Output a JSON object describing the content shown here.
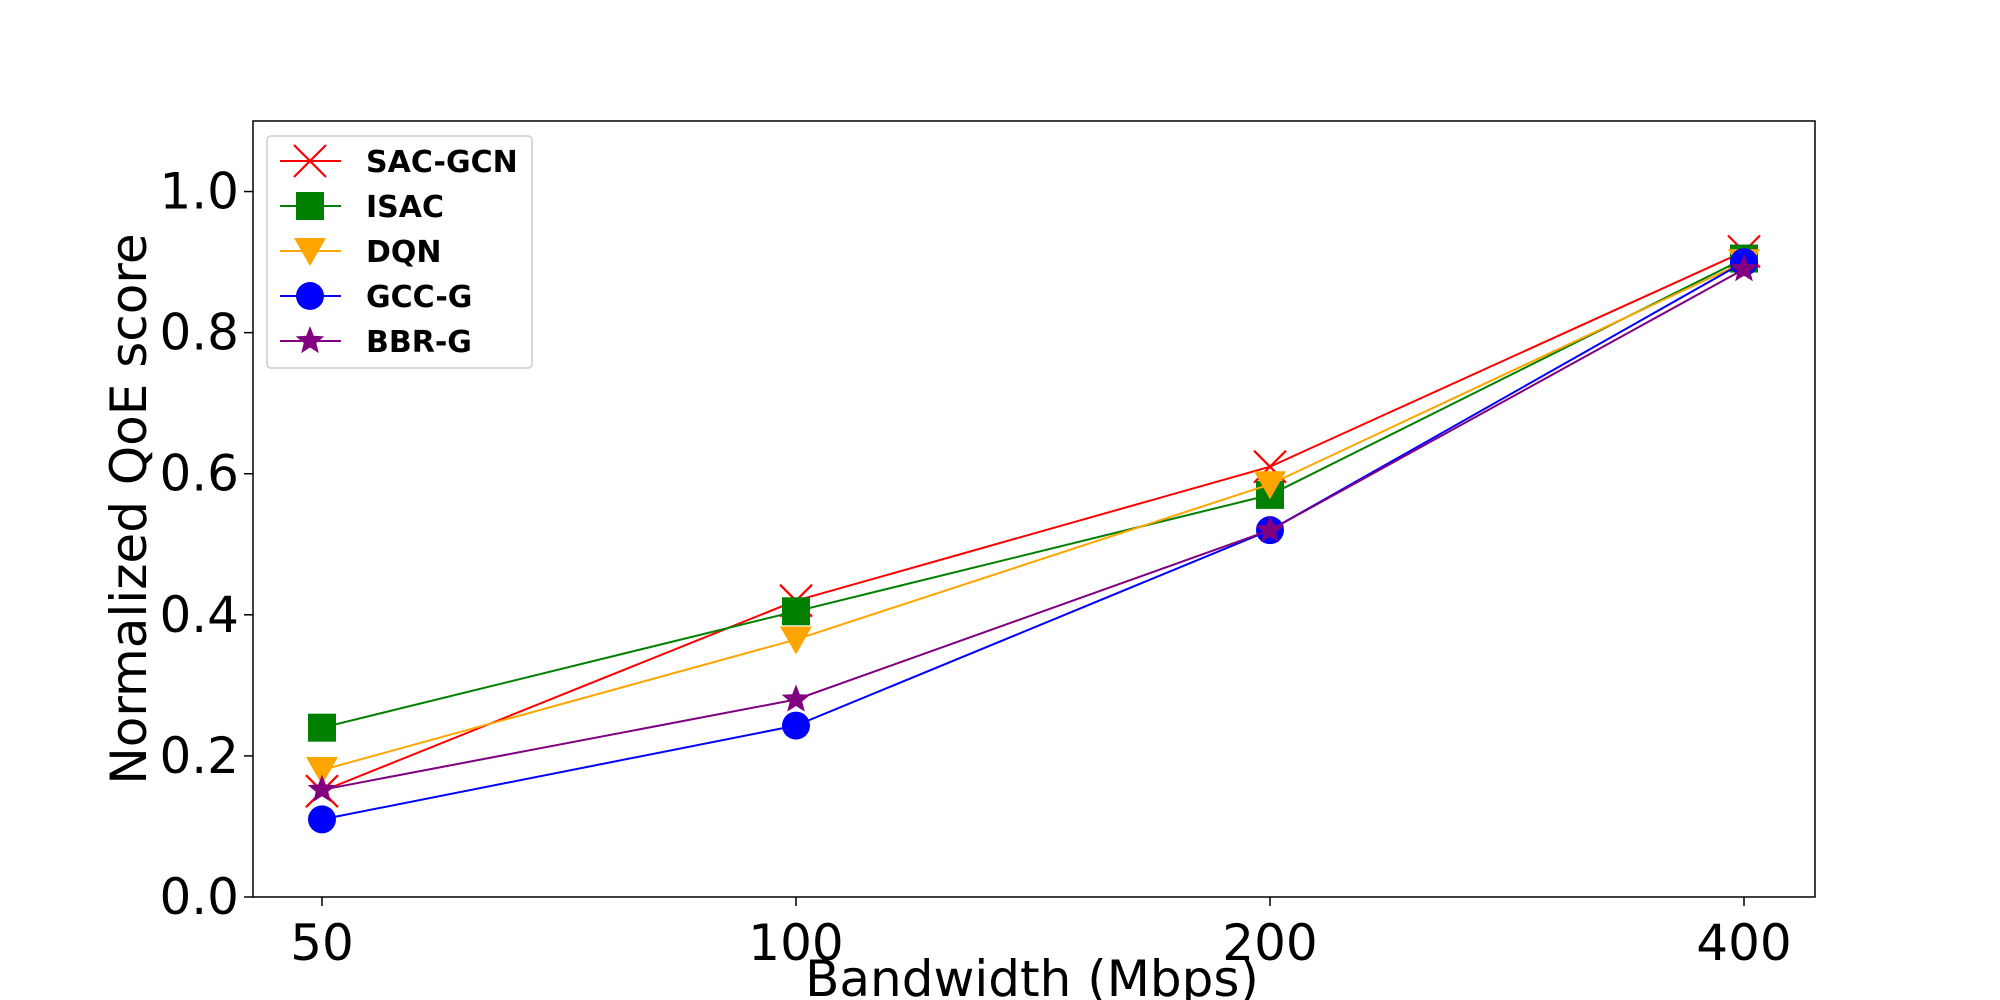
{
  "chart_data": {
    "type": "line",
    "xlabel": "Bandwidth (Mbps)",
    "ylabel": "Normalized QoE score",
    "categories": [
      "50",
      "100",
      "200",
      "400"
    ],
    "ylim": [
      0,
      1.1
    ],
    "yticks": [
      "0.0",
      "0.2",
      "0.4",
      "0.6",
      "0.8",
      "1.0"
    ],
    "legend_position": "top-left",
    "series": [
      {
        "name": "SAC-GCN",
        "color": "#ff0000",
        "marker": "x",
        "values": [
          0.15,
          0.42,
          0.61,
          0.915
        ]
      },
      {
        "name": "ISAC",
        "color": "#008000",
        "marker": "square",
        "values": [
          0.24,
          0.405,
          0.57,
          0.905
        ]
      },
      {
        "name": "DQN",
        "color": "#ffa500",
        "marker": "triangle-down",
        "values": [
          0.18,
          0.365,
          0.585,
          0.9
        ]
      },
      {
        "name": "GCC-G",
        "color": "#0000ff",
        "marker": "circle",
        "values": [
          0.11,
          0.243,
          0.52,
          0.9
        ]
      },
      {
        "name": "BBR-G",
        "color": "#800080",
        "marker": "star",
        "values": [
          0.152,
          0.28,
          0.52,
          0.89
        ]
      }
    ]
  }
}
